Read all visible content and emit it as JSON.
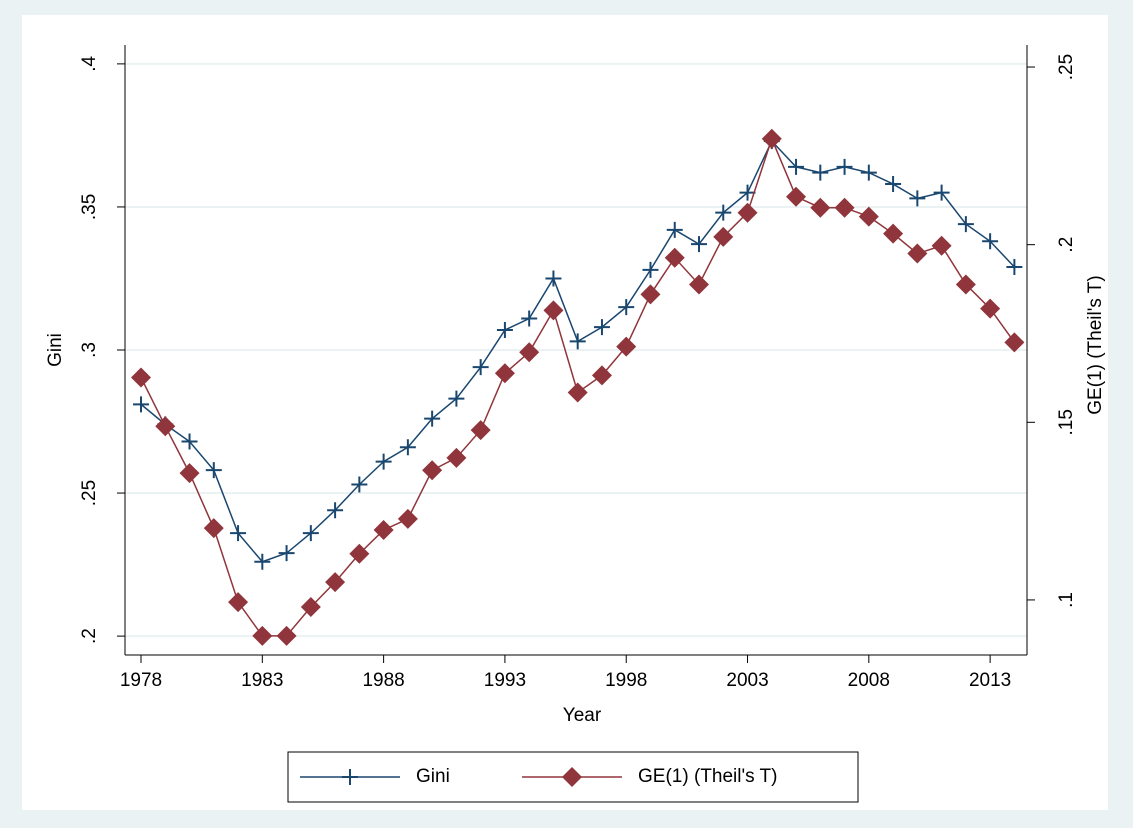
{
  "chart_data": {
    "type": "line",
    "x_label": "Year",
    "y_label": "Gini",
    "y2_label": "GE(1) (Theil's T)",
    "x": [
      1978,
      1979,
      1980,
      1981,
      1982,
      1983,
      1984,
      1985,
      1986,
      1987,
      1988,
      1989,
      1990,
      1991,
      1992,
      1993,
      1994,
      1995,
      1996,
      1997,
      1998,
      1999,
      2000,
      2001,
      2002,
      2003,
      2004,
      2005,
      2006,
      2007,
      2008,
      2009,
      2010,
      2011,
      2012,
      2013,
      2014
    ],
    "series": [
      {
        "name": "Gini",
        "color": "#1a476f",
        "marker": "plus",
        "axis": "y",
        "values": [
          0.281,
          0.274,
          0.268,
          0.258,
          0.236,
          0.226,
          0.229,
          0.236,
          0.244,
          0.253,
          0.261,
          0.266,
          0.276,
          0.283,
          0.294,
          0.307,
          0.311,
          0.325,
          0.303,
          0.308,
          0.315,
          0.328,
          0.342,
          0.337,
          0.348,
          0.355,
          0.373,
          0.364,
          0.362,
          0.364,
          0.362,
          0.358,
          0.353,
          0.355,
          0.344,
          0.338,
          0.329
        ]
      },
      {
        "name": "GE(1) (Theil's T)",
        "color": "#90353b",
        "marker": "diamond",
        "axis": "y2",
        "values": [
          0.1626,
          0.1489,
          0.1357,
          0.1202,
          0.0994,
          0.0899,
          0.0899,
          0.098,
          0.105,
          0.113,
          0.1197,
          0.1228,
          0.1365,
          0.14,
          0.1478,
          0.1638,
          0.1697,
          0.1815,
          0.1584,
          0.1632,
          0.1713,
          0.186,
          0.1963,
          0.1888,
          0.2022,
          0.209,
          0.2298,
          0.2135,
          0.2104,
          0.2104,
          0.2079,
          0.2031,
          0.1975,
          0.1997,
          0.1888,
          0.182,
          0.1725
        ]
      }
    ],
    "xlim": [
      1977.34,
      2014.52
    ],
    "xticks": [
      1978,
      1983,
      1988,
      1993,
      1998,
      2003,
      2008,
      2013
    ],
    "ylim": [
      0.1934,
      0.4066
    ],
    "yticks": [
      {
        "value": 0.2,
        "label": ".2"
      },
      {
        "value": 0.25,
        "label": ".25"
      },
      {
        "value": 0.3,
        "label": ".3"
      },
      {
        "value": 0.35,
        "label": ".35"
      },
      {
        "value": 0.4,
        "label": ".4"
      }
    ],
    "y2lim": [
      0.0845,
      0.2562
    ],
    "y2ticks": [
      {
        "value": 0.1,
        "label": ".1"
      },
      {
        "value": 0.15,
        "label": ".15"
      },
      {
        "value": 0.2,
        "label": ".2"
      },
      {
        "value": 0.25,
        "label": ".25"
      }
    ],
    "grid": true,
    "legend": "bottom"
  }
}
